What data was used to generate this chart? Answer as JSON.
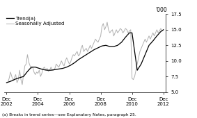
{
  "ylabel_right": "'000",
  "ylim": [
    5.0,
    17.5
  ],
  "yticks": [
    5.0,
    7.5,
    10.0,
    12.5,
    15.0,
    17.5
  ],
  "xlabel_years": [
    "Dec\n2002",
    "Dec\n2004",
    "Dec\n2006",
    "Dec\n2008",
    "Dec\n2010",
    "Dec\n2012"
  ],
  "footnote": "(a) Breaks in trend series—see Explanatory Notes, paragraph 25.",
  "trend_color": "#000000",
  "sa_color": "#b0b0b0",
  "legend_trend": "Trend(a)",
  "legend_sa": "Seasonally Adjusted",
  "trend_linewidth": 0.9,
  "sa_linewidth": 0.7,
  "x_ticks": [
    2002.917,
    2004.917,
    2006.917,
    2008.917,
    2010.917,
    2012.917
  ],
  "trend_x": [
    2002.917,
    2003.25,
    2003.5,
    2003.75,
    2004.0,
    2004.25,
    2004.5,
    2004.75,
    2005.0,
    2005.25,
    2005.5,
    2005.75,
    2006.0,
    2006.25,
    2006.5,
    2006.75,
    2007.0,
    2007.25,
    2007.5,
    2007.75,
    2008.0,
    2008.25,
    2008.5,
    2008.75,
    2009.0,
    2009.25,
    2009.5,
    2009.75,
    2010.0,
    2010.25,
    2010.5,
    2010.75,
    2010.917,
    2011.25,
    2011.5,
    2011.75,
    2012.0,
    2012.25,
    2012.5,
    2012.75,
    2012.917
  ],
  "trend_y": [
    6.5,
    6.8,
    7.1,
    7.3,
    7.5,
    8.3,
    9.0,
    9.0,
    8.8,
    8.6,
    8.5,
    8.5,
    8.6,
    8.7,
    8.8,
    9.0,
    9.3,
    9.7,
    10.2,
    10.6,
    11.0,
    11.4,
    11.8,
    12.1,
    12.4,
    12.5,
    12.3,
    12.3,
    12.5,
    13.0,
    13.8,
    14.5,
    14.5,
    8.5,
    9.5,
    11.0,
    12.5,
    13.2,
    14.0,
    14.7,
    15.0
  ],
  "sa_x": [
    2002.917,
    2003.0,
    2003.083,
    2003.167,
    2003.25,
    2003.333,
    2003.417,
    2003.5,
    2003.583,
    2003.667,
    2003.75,
    2003.833,
    2003.917,
    2004.0,
    2004.083,
    2004.167,
    2004.25,
    2004.333,
    2004.417,
    2004.5,
    2004.583,
    2004.667,
    2004.75,
    2004.833,
    2004.917,
    2005.0,
    2005.083,
    2005.167,
    2005.25,
    2005.333,
    2005.417,
    2005.5,
    2005.583,
    2005.667,
    2005.75,
    2005.833,
    2005.917,
    2006.0,
    2006.083,
    2006.167,
    2006.25,
    2006.333,
    2006.417,
    2006.5,
    2006.583,
    2006.667,
    2006.75,
    2006.833,
    2006.917,
    2007.0,
    2007.083,
    2007.167,
    2007.25,
    2007.333,
    2007.417,
    2007.5,
    2007.583,
    2007.667,
    2007.75,
    2007.833,
    2007.917,
    2008.0,
    2008.083,
    2008.167,
    2008.25,
    2008.333,
    2008.417,
    2008.5,
    2008.583,
    2008.667,
    2008.75,
    2008.833,
    2008.917,
    2009.0,
    2009.083,
    2009.167,
    2009.25,
    2009.333,
    2009.417,
    2009.5,
    2009.583,
    2009.667,
    2009.75,
    2009.833,
    2009.917,
    2010.0,
    2010.083,
    2010.167,
    2010.25,
    2010.333,
    2010.417,
    2010.5,
    2010.583,
    2010.667,
    2010.75,
    2010.833,
    2010.917,
    2011.0,
    2011.083,
    2011.167,
    2011.25,
    2011.333,
    2011.417,
    2011.5,
    2011.583,
    2011.667,
    2011.75,
    2011.833,
    2011.917,
    2012.0,
    2012.083,
    2012.167,
    2012.25,
    2012.333,
    2012.417,
    2012.5,
    2012.583,
    2012.667,
    2012.75,
    2012.833,
    2012.917
  ],
  "sa_y": [
    6.5,
    6.6,
    7.2,
    8.2,
    7.5,
    6.8,
    7.3,
    7.8,
    6.5,
    7.0,
    8.5,
    7.0,
    6.2,
    7.8,
    9.2,
    9.5,
    11.0,
    9.8,
    9.2,
    8.8,
    9.0,
    8.2,
    7.8,
    8.2,
    8.0,
    8.5,
    7.5,
    8.0,
    8.8,
    9.0,
    8.5,
    8.8,
    8.3,
    8.5,
    9.0,
    8.5,
    8.5,
    8.8,
    9.5,
    9.2,
    9.0,
    9.5,
    10.0,
    9.5,
    9.2,
    10.0,
    10.5,
    10.0,
    9.5,
    9.8,
    10.5,
    11.0,
    10.8,
    11.2,
    11.5,
    10.8,
    11.0,
    12.0,
    12.5,
    11.5,
    11.8,
    12.0,
    11.5,
    12.0,
    12.5,
    12.0,
    12.5,
    13.0,
    13.5,
    13.2,
    13.0,
    13.5,
    14.0,
    15.5,
    16.0,
    15.0,
    15.5,
    16.2,
    15.0,
    14.5,
    14.8,
    15.0,
    14.0,
    14.5,
    15.0,
    14.5,
    14.8,
    15.2,
    15.0,
    14.5,
    14.8,
    15.2,
    15.0,
    14.5,
    14.8,
    15.0,
    7.2,
    7.0,
    7.5,
    8.5,
    9.5,
    10.5,
    11.5,
    12.0,
    12.5,
    13.0,
    13.5,
    13.0,
    13.5,
    14.0,
    13.5,
    14.0,
    14.5,
    14.0,
    14.5,
    15.0,
    14.5,
    14.8,
    15.2,
    14.8,
    15.0
  ]
}
